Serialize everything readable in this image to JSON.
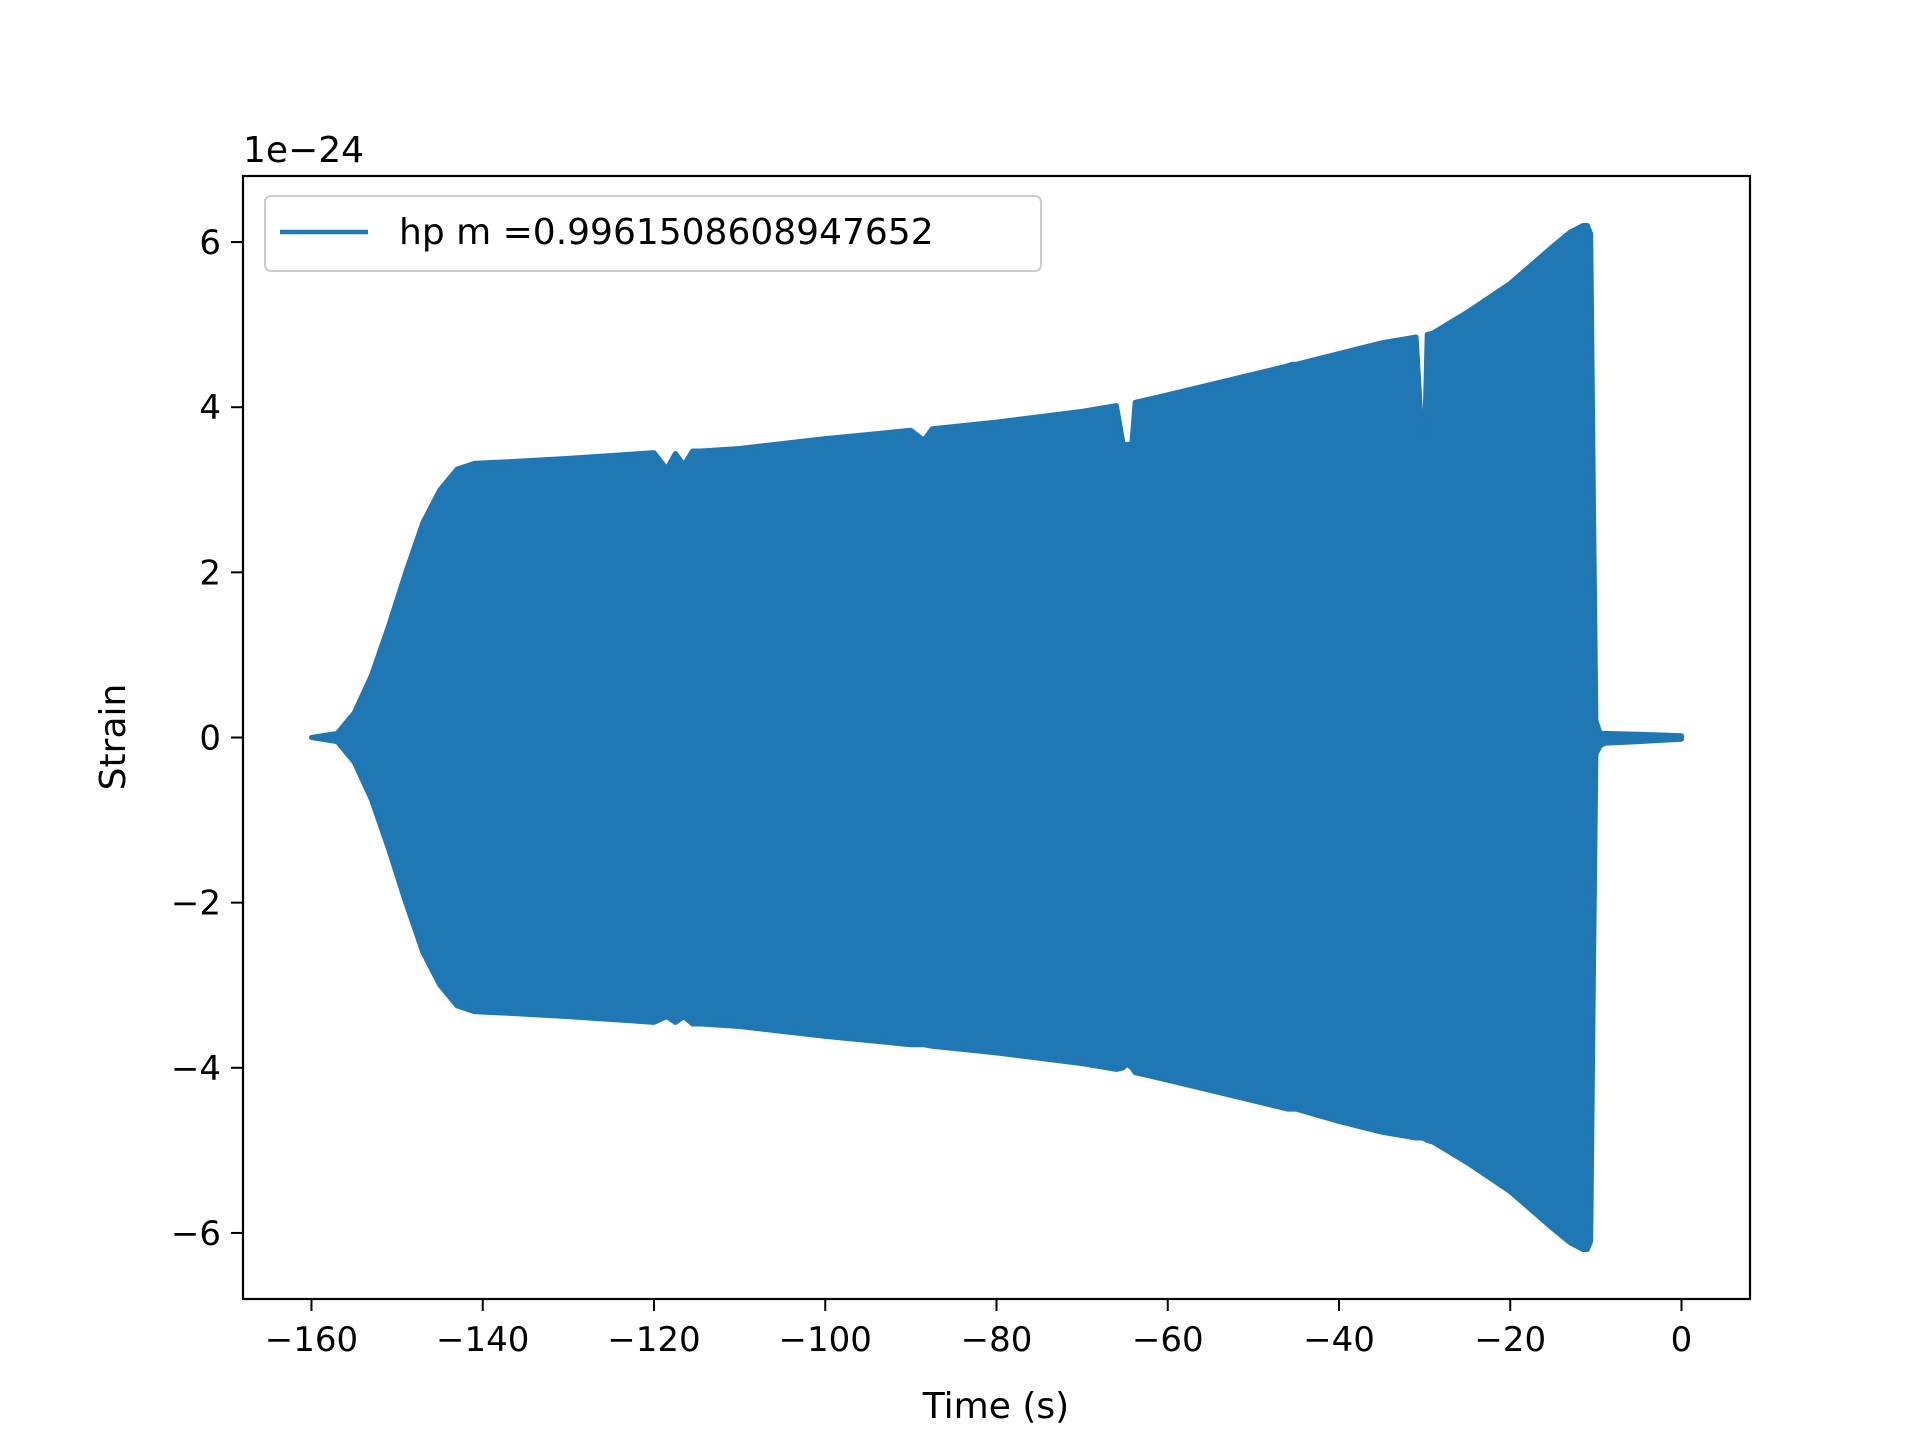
{
  "chart_data": {
    "type": "area",
    "title": "",
    "xlabel": "Time (s)",
    "ylabel": "Strain",
    "y_offset_label": "1e−24",
    "y_scale_factor": 1e-24,
    "xlim": [
      -168,
      8
    ],
    "ylim": [
      -6.8,
      6.8
    ],
    "xticks": [
      -160,
      -140,
      -120,
      -100,
      -80,
      -60,
      -40,
      -20,
      0
    ],
    "yticks": [
      -6,
      -4,
      -2,
      0,
      2,
      4,
      6
    ],
    "xtick_labels": [
      "−160",
      "−140",
      "−120",
      "−100",
      "−80",
      "−60",
      "−40",
      "−20",
      "0"
    ],
    "ytick_labels": [
      "−6",
      "−4",
      "−2",
      "0",
      "2",
      "4",
      "6"
    ],
    "grid": false,
    "legend_position": "upper-left",
    "series": [
      {
        "name": "hp m =0.9961508608947652",
        "color": "#1f77b4",
        "note_values": "envelope of rapidly oscillating strain (units of 1e-24)",
        "x": [
          -160,
          -157,
          -155,
          -153,
          -151,
          -149,
          -147,
          -145,
          -143,
          -141,
          -139,
          -137,
          -130,
          -120,
          -118.5,
          -117.5,
          -116.5,
          -115.5,
          -114.5,
          -110,
          -100,
          -90,
          -88.5,
          -87.5,
          -80,
          -70,
          -66,
          -65.2,
          -64.8,
          -64.2,
          -63.8,
          -60,
          -50,
          -46,
          -45.5,
          -45,
          -40,
          -35,
          -31,
          -30.3,
          -30,
          -29.7,
          -29,
          -25,
          -20,
          -15,
          -13,
          -11.5,
          -11,
          -10.6,
          -10.3,
          -10,
          -9.5,
          -9,
          -5,
          0
        ],
        "upper": [
          0.0,
          0.05,
          0.3,
          0.75,
          1.35,
          2.0,
          2.6,
          3.0,
          3.25,
          3.32,
          3.33,
          3.34,
          3.38,
          3.45,
          3.25,
          3.44,
          3.3,
          3.47,
          3.47,
          3.5,
          3.62,
          3.72,
          3.6,
          3.74,
          3.82,
          3.95,
          4.02,
          3.55,
          3.55,
          3.55,
          4.06,
          4.15,
          4.4,
          4.5,
          4.52,
          4.52,
          4.65,
          4.78,
          4.85,
          3.6,
          3.6,
          4.88,
          4.9,
          5.15,
          5.5,
          5.95,
          6.12,
          6.2,
          6.2,
          6.1,
          3.0,
          0.2,
          0.05,
          0.05,
          0.04,
          0.02
        ],
        "lower": [
          0.0,
          -0.05,
          -0.3,
          -0.75,
          -1.35,
          -2.0,
          -2.6,
          -3.0,
          -3.25,
          -3.32,
          -3.33,
          -3.34,
          -3.38,
          -3.45,
          -3.38,
          -3.45,
          -3.38,
          -3.47,
          -3.47,
          -3.5,
          -3.62,
          -3.72,
          -3.72,
          -3.74,
          -3.82,
          -3.95,
          -4.02,
          -4.0,
          -3.95,
          -4.0,
          -4.06,
          -4.15,
          -4.4,
          -4.5,
          -4.5,
          -4.5,
          -4.65,
          -4.78,
          -4.85,
          -4.85,
          -4.86,
          -4.88,
          -4.9,
          -5.15,
          -5.5,
          -5.95,
          -6.12,
          -6.2,
          -6.2,
          -6.1,
          -3.0,
          -0.2,
          -0.1,
          -0.07,
          -0.05,
          -0.02
        ]
      }
    ]
  }
}
